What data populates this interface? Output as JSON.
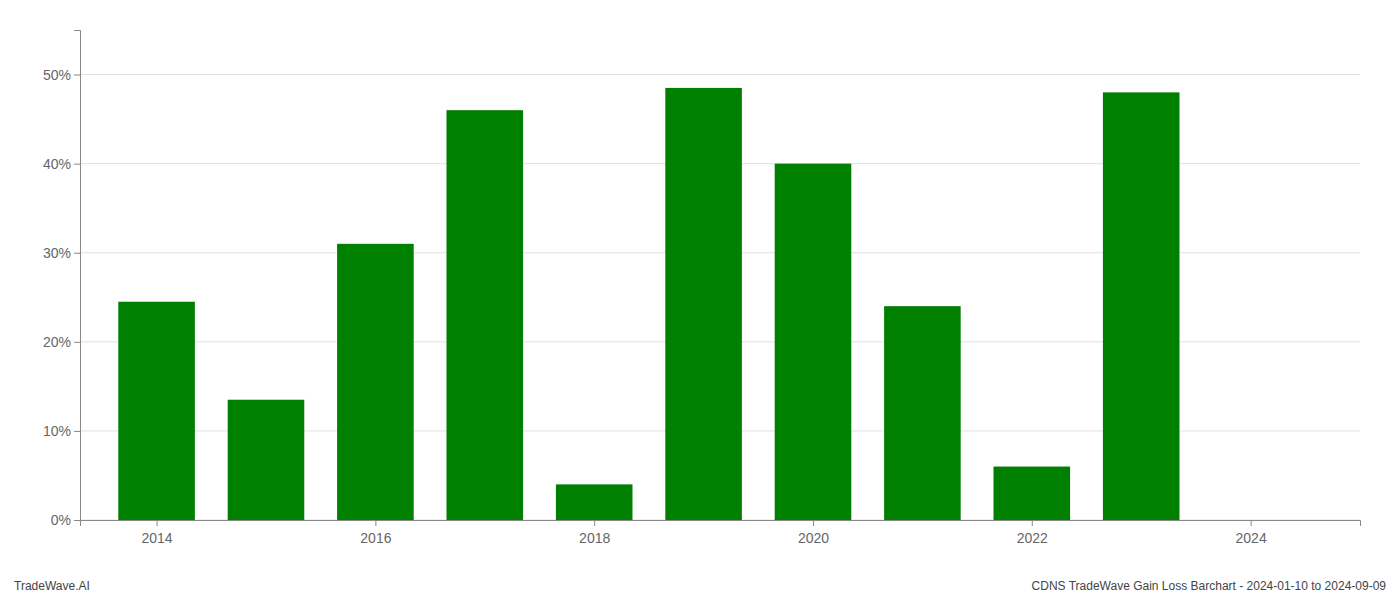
{
  "chart_data": {
    "type": "bar",
    "x": [
      2014,
      2015,
      2016,
      2017,
      2018,
      2019,
      2020,
      2021,
      2022,
      2023
    ],
    "values": [
      0.245,
      0.135,
      0.31,
      0.46,
      0.04,
      0.485,
      0.4,
      0.24,
      0.06,
      0.48
    ],
    "color": "#008000",
    "xlim": [
      2013.3,
      2025.0
    ],
    "xticks": [
      2014,
      2016,
      2018,
      2020,
      2022,
      2024
    ],
    "ylim": [
      0,
      0.55
    ],
    "yticks": [
      {
        "value": 0.0,
        "label": "0%"
      },
      {
        "value": 0.1,
        "label": "10%"
      },
      {
        "value": 0.2,
        "label": "20%"
      },
      {
        "value": 0.3,
        "label": "30%"
      },
      {
        "value": 0.4,
        "label": "40%"
      },
      {
        "value": 0.5,
        "label": "50%"
      }
    ],
    "grid": true,
    "annotations": [
      "TradeWave.AI",
      "CDNS TradeWave Gain Loss Barchart - 2024-01-10 to 2024-09-09"
    ]
  }
}
